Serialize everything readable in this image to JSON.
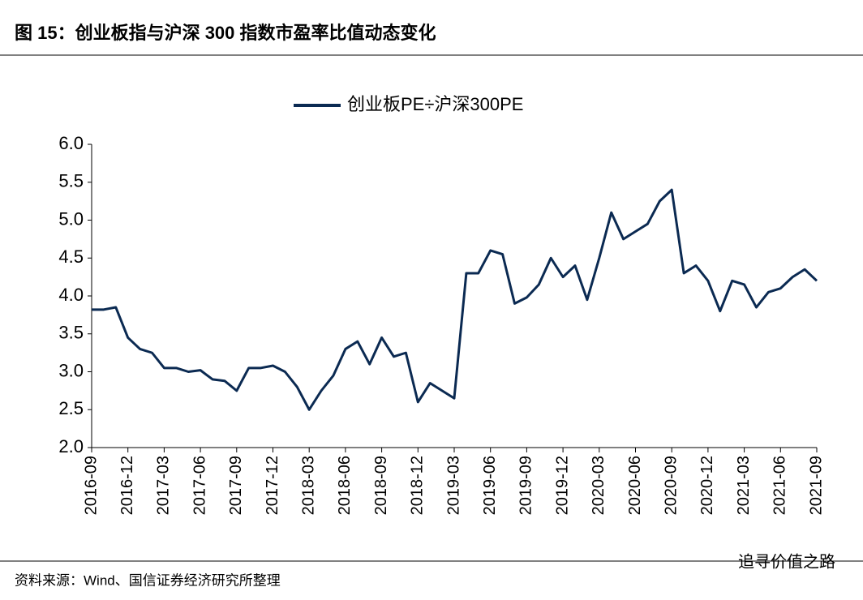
{
  "header": {
    "title": "图 15：创业板指与沪深 300 指数市盈率比值动态变化"
  },
  "chart_data": {
    "type": "line",
    "x": [
      "2016-09",
      "2016-10",
      "2016-11",
      "2016-12",
      "2017-01",
      "2017-02",
      "2017-03",
      "2017-04",
      "2017-05",
      "2017-06",
      "2017-07",
      "2017-08",
      "2017-09",
      "2017-10",
      "2017-11",
      "2017-12",
      "2018-01",
      "2018-02",
      "2018-03",
      "2018-04",
      "2018-05",
      "2018-06",
      "2018-07",
      "2018-08",
      "2018-09",
      "2018-10",
      "2018-11",
      "2018-12",
      "2019-01",
      "2019-02",
      "2019-03",
      "2019-04",
      "2019-05",
      "2019-06",
      "2019-07",
      "2019-08",
      "2019-09",
      "2019-10",
      "2019-11",
      "2019-12",
      "2020-01",
      "2020-02",
      "2020-03",
      "2020-04",
      "2020-05",
      "2020-06",
      "2020-07",
      "2020-08",
      "2020-09",
      "2020-10",
      "2020-11",
      "2020-12",
      "2021-01",
      "2021-02",
      "2021-03",
      "2021-04",
      "2021-05",
      "2021-06",
      "2021-07",
      "2021-08",
      "2021-09"
    ],
    "series": [
      {
        "name": "创业板PE÷沪深300PE",
        "color": "#0b2a52",
        "values": [
          3.82,
          3.82,
          3.85,
          3.45,
          3.3,
          3.25,
          3.05,
          3.05,
          3.0,
          3.02,
          2.9,
          2.88,
          2.75,
          3.05,
          3.05,
          3.08,
          3.0,
          2.8,
          2.5,
          2.75,
          2.95,
          3.3,
          3.4,
          3.1,
          3.45,
          3.2,
          3.25,
          2.6,
          2.85,
          2.75,
          2.65,
          4.3,
          4.3,
          4.6,
          4.55,
          3.9,
          3.98,
          4.15,
          4.5,
          4.25,
          4.4,
          3.95,
          4.5,
          5.1,
          4.75,
          4.85,
          4.95,
          5.25,
          5.4,
          4.3,
          4.4,
          4.2,
          3.8,
          4.2,
          4.15,
          3.85,
          4.05,
          4.1,
          4.25,
          4.35,
          4.2
        ]
      }
    ],
    "xticks": [
      "2016-09",
      "2016-12",
      "2017-03",
      "2017-06",
      "2017-09",
      "2017-12",
      "2018-03",
      "2018-06",
      "2018-09",
      "2018-12",
      "2019-03",
      "2019-06",
      "2019-09",
      "2019-12",
      "2020-03",
      "2020-06",
      "2020-09",
      "2020-12",
      "2021-03",
      "2021-06",
      "2021-09"
    ],
    "ylim": [
      2.0,
      6.0
    ],
    "yticks": [
      {
        "value": 2,
        "label": "2.0"
      },
      2.5,
      {
        "value": 3,
        "label": "3.0"
      },
      3.5,
      {
        "value": 4,
        "label": "4.0"
      },
      4.5,
      {
        "value": 5,
        "label": "5.0"
      },
      5.5,
      {
        "value": 6,
        "label": "6.0"
      }
    ],
    "legend": "top"
  },
  "footer": {
    "source": "资料来源：Wind、国信证券经济研究所整理",
    "watermark": "追寻价值之路"
  }
}
